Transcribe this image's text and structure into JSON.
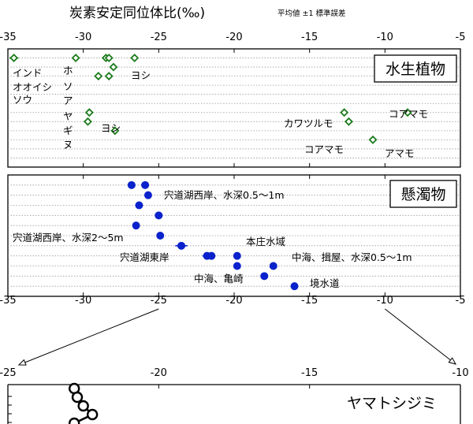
{
  "title": "炭素安定同位体比(‰)",
  "subtitle": "平均値 ±1 標準誤差",
  "chart_data": [
    {
      "type": "scatter",
      "name": "水生植物",
      "xlim": [
        -35,
        -5
      ],
      "ticks": [
        "-35",
        "-30",
        "-25",
        "-20",
        "-15",
        "-10",
        "-5"
      ],
      "grid": "horizontal-dotted",
      "marker": "open-diamond",
      "color": "#1a7a1a",
      "rows": 12,
      "points": [
        {
          "x": -34.6,
          "row": 1,
          "err": 0.3
        },
        {
          "x": -30.5,
          "row": 1
        },
        {
          "x": -28.5,
          "row": 1
        },
        {
          "x": -28.3,
          "row": 1
        },
        {
          "x": -26.6,
          "row": 1
        },
        {
          "x": -28.0,
          "row": 2
        },
        {
          "x": -29.0,
          "row": 3
        },
        {
          "x": -28.3,
          "row": 3
        },
        {
          "x": -12.7,
          "row": 7
        },
        {
          "x": -8.5,
          "row": 7
        },
        {
          "x": -29.6,
          "row": 7
        },
        {
          "x": -29.7,
          "row": 8
        },
        {
          "x": -12.4,
          "row": 8
        },
        {
          "x": -27.9,
          "row": 9,
          "err": 0.25
        },
        {
          "x": -10.8,
          "row": 10
        }
      ],
      "annotations": [
        "インド",
        "オオイシ",
        "ソウ",
        "ホ",
        "ソ",
        "ア",
        "ヤ",
        "ギ",
        "ヌ",
        "ヨシ",
        "ヨシ",
        "カワツルモ",
        "コアマモ",
        "コアマモ",
        "アマモ"
      ],
      "panel_label": "水生植物"
    },
    {
      "type": "scatter",
      "name": "懸濁物",
      "xlim": [
        -35,
        -5
      ],
      "ticks": [
        "-35",
        "-30",
        "-25",
        "-20",
        "-15",
        "-10",
        "-5"
      ],
      "grid": "horizontal-dotted",
      "marker": "filled-circle",
      "color": "#0a22cc",
      "rows": 11,
      "points": [
        {
          "x": -26.8,
          "row": 1
        },
        {
          "x": -25.9,
          "row": 1,
          "err": 0.25
        },
        {
          "x": -25.7,
          "row": 2
        },
        {
          "x": -26.3,
          "row": 3
        },
        {
          "x": -25.0,
          "row": 4
        },
        {
          "x": -26.5,
          "row": 5
        },
        {
          "x": -24.9,
          "row": 6
        },
        {
          "x": -23.5,
          "row": 7,
          "err": 0.4
        },
        {
          "x": -21.8,
          "row": 8,
          "err": 0.3
        },
        {
          "x": -21.5,
          "row": 8
        },
        {
          "x": -19.8,
          "row": 8
        },
        {
          "x": -19.8,
          "row": 9
        },
        {
          "x": -17.4,
          "row": 9
        },
        {
          "x": -18.0,
          "row": 10
        },
        {
          "x": -16.0,
          "row": 11
        }
      ],
      "annotations": [
        "宍道湖西岸、水深0.5〜1m",
        "宍道湖西岸、水深2〜5m",
        "本庄水域",
        "宍道湖東岸",
        "中海、揖屋、水深0.5〜1m",
        "中海、亀崎",
        "境水道"
      ],
      "panel_label": "懸濁物"
    },
    {
      "type": "line",
      "name": "ヤマトシジミ",
      "xlim": [
        -25,
        -10
      ],
      "ticks": [
        "-25",
        "-20",
        "-15",
        "-10"
      ],
      "marker": "open-circle",
      "color": "#000000",
      "points": [
        {
          "x": -22.8,
          "y": 0
        },
        {
          "x": -22.7,
          "y": 1
        },
        {
          "x": -22.5,
          "y": 2
        },
        {
          "x": -22.2,
          "y": 3
        },
        {
          "x": -22.8,
          "y": 4
        }
      ],
      "panel_label": "ヤマトシジミ"
    }
  ]
}
